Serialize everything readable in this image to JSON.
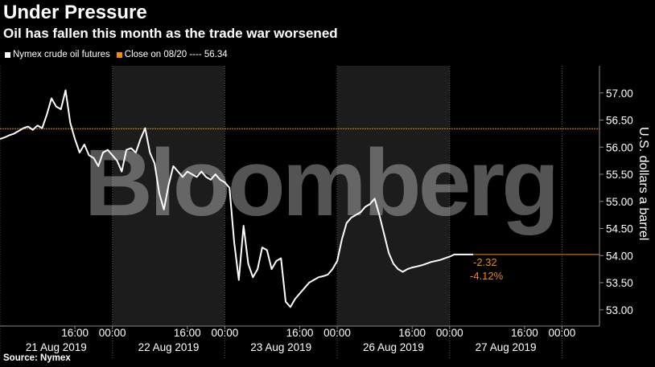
{
  "chart_data": {
    "type": "line",
    "title": "Under Pressure",
    "subtitle": "Oil has fallen this month as the trade war worsened",
    "source": "Source: Nymex",
    "ylabel": "U.S. dollars a barrel",
    "ylim": [
      52.7,
      57.5
    ],
    "yticks": [
      "57.00",
      "56.50",
      "56.00",
      "55.50",
      "55.00",
      "54.50",
      "54.00",
      "53.50",
      "53.00"
    ],
    "ytick_values": [
      57.0,
      56.5,
      56.0,
      55.5,
      55.0,
      54.5,
      54.0,
      53.5,
      53.0
    ],
    "x_time_labels": [
      "16:00",
      "00:00",
      "16:00",
      "00:00",
      "16:00",
      "00:00",
      "16:00",
      "00:00",
      "16:00",
      "00:00"
    ],
    "x_time_positions_hours": [
      16,
      24,
      40,
      48,
      64,
      72,
      88,
      96,
      112,
      120
    ],
    "x_date_labels": [
      "21 Aug 2019",
      "22 Aug 2019",
      "23 Aug 2019",
      "26 Aug 2019",
      "27 Aug 2019"
    ],
    "x_date_positions_hours": [
      12,
      36,
      60,
      84,
      108
    ],
    "x_day_boundaries_hours": [
      0,
      24,
      48,
      72,
      96,
      120
    ],
    "shaded_day_ranges_hours": [
      [
        24,
        48
      ],
      [
        72,
        96
      ]
    ],
    "xlim_hours": [
      0,
      128
    ],
    "legend": [
      {
        "label": "Nymex crude oil futures",
        "color": "#ffffff"
      },
      {
        "label": "Close on 08/20 ---- 56.34",
        "color": "#f08c00"
      }
    ],
    "reference_line": {
      "value": 56.34,
      "color": "#f08c00"
    },
    "annotation": {
      "change": "-2.32",
      "pct": "-4.12%",
      "color": "#f08c00",
      "level": 54.02
    },
    "watermark": "Bloomberg",
    "series": [
      {
        "name": "Nymex crude oil futures",
        "x": [
          0,
          1,
          2,
          3,
          4,
          5,
          6,
          7,
          8,
          9,
          10,
          11,
          12,
          13,
          14,
          15,
          16,
          17,
          18,
          19,
          20,
          21,
          22,
          23,
          24,
          25,
          26,
          27,
          28,
          29,
          30,
          31,
          32,
          33,
          34,
          35,
          36,
          37,
          38,
          39,
          40,
          41,
          42,
          43,
          44,
          45,
          46,
          47,
          48,
          49,
          50,
          51,
          52,
          53,
          54,
          55,
          56,
          57,
          58,
          59,
          60,
          61,
          62,
          63,
          64,
          65,
          66,
          67,
          68,
          69,
          70,
          71,
          72,
          73,
          74,
          75,
          76,
          77,
          78,
          79,
          80,
          81,
          82,
          83,
          84,
          85,
          86,
          87,
          88,
          89,
          90,
          91,
          92,
          93,
          94,
          95,
          96,
          97,
          98,
          99,
          100,
          101
        ],
        "y": [
          56.15,
          56.18,
          56.22,
          56.25,
          56.3,
          56.35,
          56.38,
          56.32,
          56.4,
          56.35,
          56.6,
          56.9,
          56.75,
          56.7,
          57.05,
          56.45,
          56.15,
          55.9,
          56.05,
          55.85,
          55.8,
          55.65,
          55.9,
          55.95,
          55.85,
          55.75,
          55.55,
          55.95,
          55.98,
          55.9,
          56.15,
          56.35,
          55.9,
          55.7,
          55.15,
          54.85,
          55.3,
          55.65,
          55.55,
          55.45,
          55.55,
          55.5,
          55.45,
          55.55,
          55.45,
          55.4,
          55.5,
          55.4,
          55.35,
          55.25,
          54.25,
          53.55,
          54.55,
          53.85,
          53.6,
          53.75,
          54.15,
          54.1,
          53.75,
          53.9,
          53.95,
          53.15,
          53.05,
          53.2,
          53.3,
          53.4,
          53.5,
          53.55,
          53.6,
          53.62,
          53.65,
          53.75,
          53.9,
          54.3,
          54.6,
          54.7,
          54.75,
          54.8,
          54.9,
          54.95,
          55.05,
          54.75,
          54.4,
          54.05,
          53.85,
          53.75,
          53.7,
          53.75,
          53.78,
          53.8,
          53.82,
          53.85,
          53.88,
          53.9,
          53.92,
          53.95,
          53.98,
          54.02,
          54.02,
          54.02,
          54.02,
          54.02
        ]
      }
    ]
  }
}
